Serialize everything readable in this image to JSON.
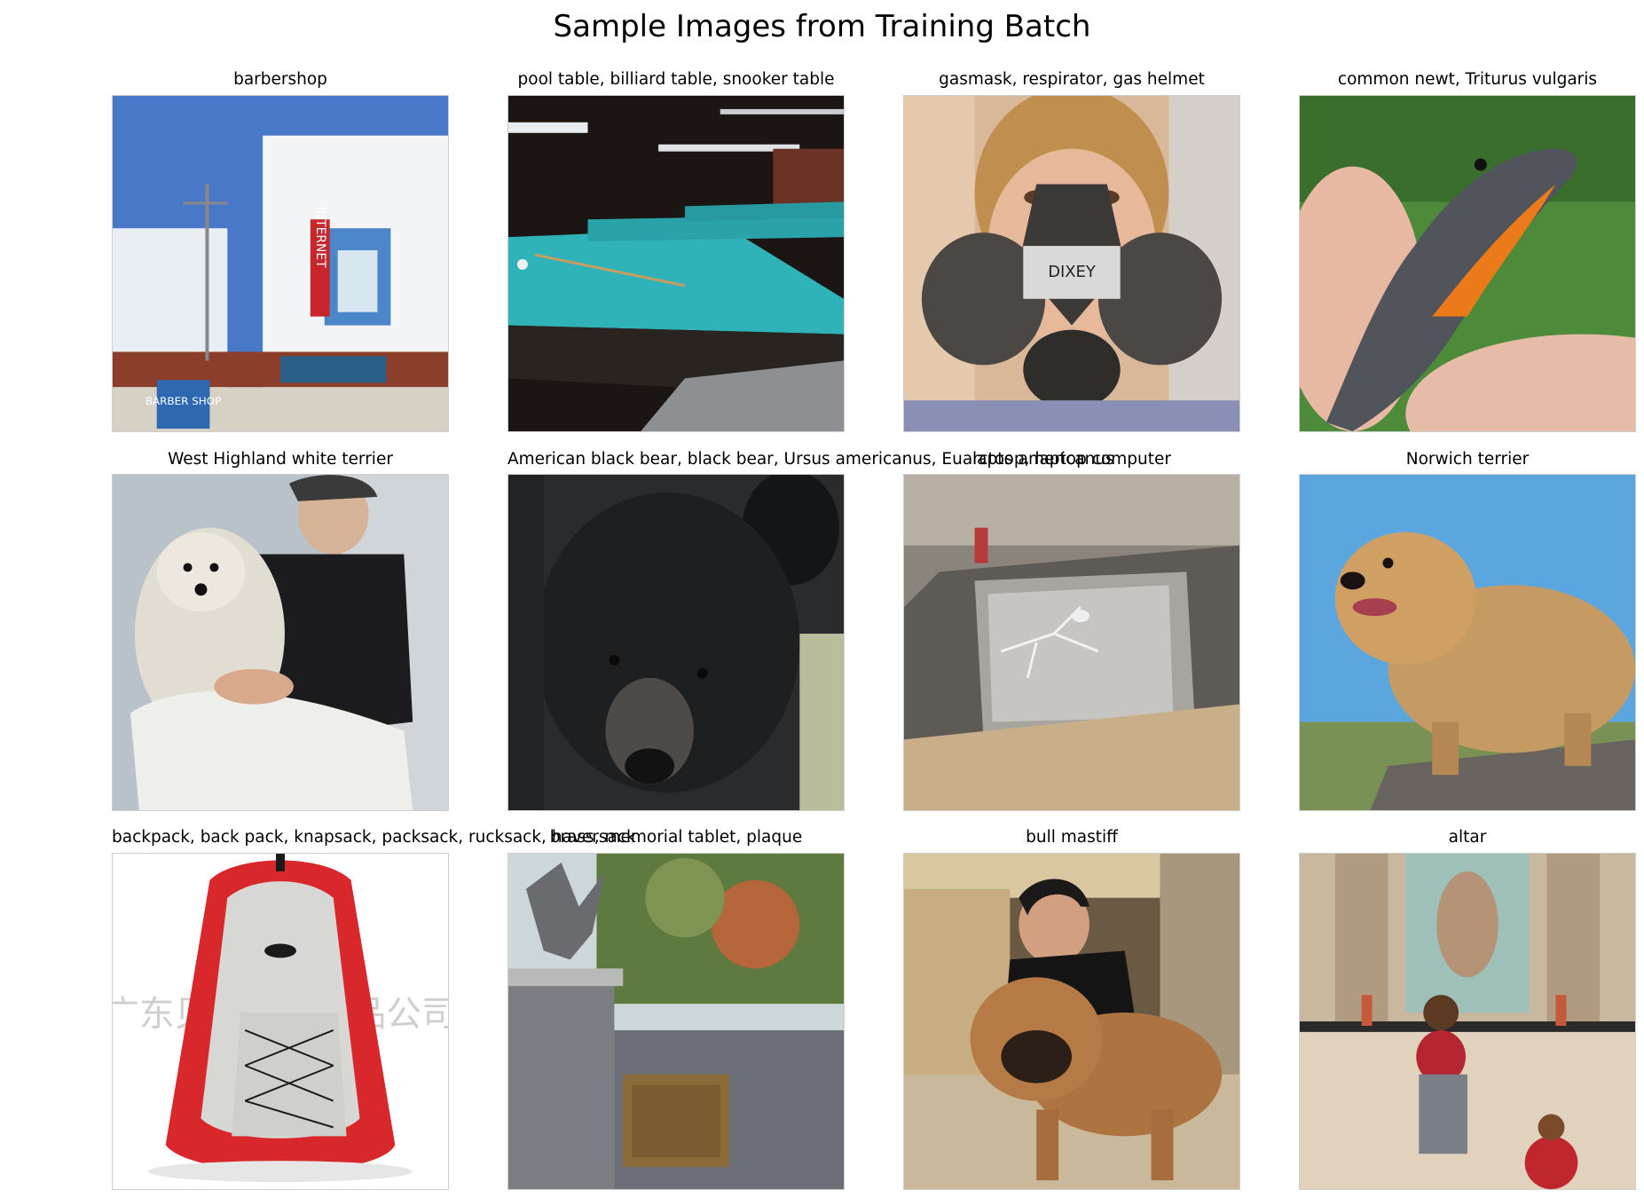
{
  "figure": {
    "title": "Sample Images from Training Batch"
  },
  "images": [
    {
      "label": "barbershop",
      "signs": {
        "sign1": "INTERNET",
        "sign2": "BARBER SHOP"
      }
    },
    {
      "label": "pool table, billiard table, snooker table"
    },
    {
      "label": "gasmask, respirator, gas helmet",
      "mask_text": "DIXEY"
    },
    {
      "label": "common newt, Triturus vulgaris"
    },
    {
      "label": "West Highland white terrier"
    },
    {
      "label": "American black bear, black bear, Ursus americanus, Euarctos americanus"
    },
    {
      "label": "laptop, laptop computer"
    },
    {
      "label": "Norwich terrier"
    },
    {
      "label": "backpack, back pack, knapsack, packsack, rucksack, haversack",
      "watermark": "广东贝贝宠物用品公司"
    },
    {
      "label": "brass, memorial tablet, plaque"
    },
    {
      "label": "bull mastiff"
    },
    {
      "label": "altar"
    }
  ]
}
